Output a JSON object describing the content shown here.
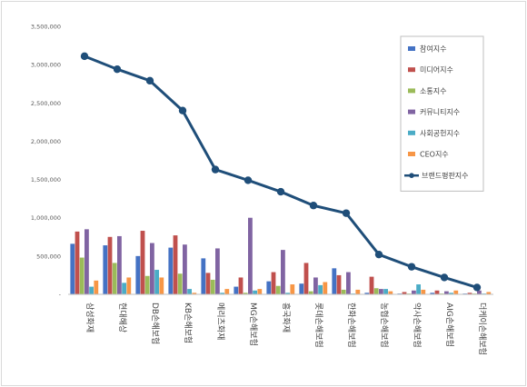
{
  "chart_data": {
    "type": "bar",
    "title": "",
    "xlabel": "",
    "ylabel": "",
    "ylim": [
      0,
      3500000
    ],
    "yticks": [
      0,
      500000,
      1000000,
      1500000,
      2000000,
      2500000,
      3000000,
      3500000
    ],
    "ytick_labels": [
      "-",
      "500,000",
      "1,000,000",
      "1,500,000",
      "2,000,000",
      "2,500,000",
      "3,000,000",
      "3,500,000"
    ],
    "grid": false,
    "legend_position": "top-right",
    "categories": [
      "삼성화재",
      "현대해상",
      "DB손해보험",
      "KB손해보험",
      "메리츠화재",
      "MG손해보험",
      "흥국화재",
      "롯데손해보험",
      "한화손해보험",
      "농협손해보험",
      "악사손해보험",
      "AIG손해보험",
      "더케이손해보험"
    ],
    "series": [
      {
        "name": "참여지수",
        "color": "#4472c4",
        "values": [
          660000,
          640000,
          500000,
          610000,
          470000,
          100000,
          170000,
          140000,
          340000,
          20000,
          10000,
          20000,
          10000
        ]
      },
      {
        "name": "미디어지수",
        "color": "#c0504d",
        "values": [
          820000,
          750000,
          830000,
          770000,
          280000,
          220000,
          290000,
          410000,
          250000,
          230000,
          30000,
          50000,
          20000
        ]
      },
      {
        "name": "소통지수",
        "color": "#9bbb59",
        "values": [
          480000,
          410000,
          240000,
          270000,
          190000,
          20000,
          110000,
          40000,
          60000,
          80000,
          10000,
          10000,
          10000
        ]
      },
      {
        "name": "커뮤니티지수",
        "color": "#8064a2",
        "values": [
          850000,
          760000,
          670000,
          650000,
          600000,
          1000000,
          580000,
          220000,
          290000,
          70000,
          50000,
          40000,
          50000
        ]
      },
      {
        "name": "사회공헌지수",
        "color": "#4bacc6",
        "values": [
          100000,
          150000,
          320000,
          70000,
          20000,
          50000,
          20000,
          120000,
          10000,
          70000,
          130000,
          20000,
          10000
        ]
      },
      {
        "name": "CEO지수",
        "color": "#f79646",
        "values": [
          180000,
          220000,
          220000,
          20000,
          70000,
          70000,
          130000,
          160000,
          60000,
          40000,
          60000,
          50000,
          30000
        ]
      }
    ],
    "line_series": {
      "name": "브랜드평판지수",
      "color": "#1f4e79",
      "values": [
        3110000,
        2940000,
        2790000,
        2400000,
        1630000,
        1490000,
        1340000,
        1160000,
        1060000,
        520000,
        360000,
        220000,
        90000
      ]
    }
  }
}
